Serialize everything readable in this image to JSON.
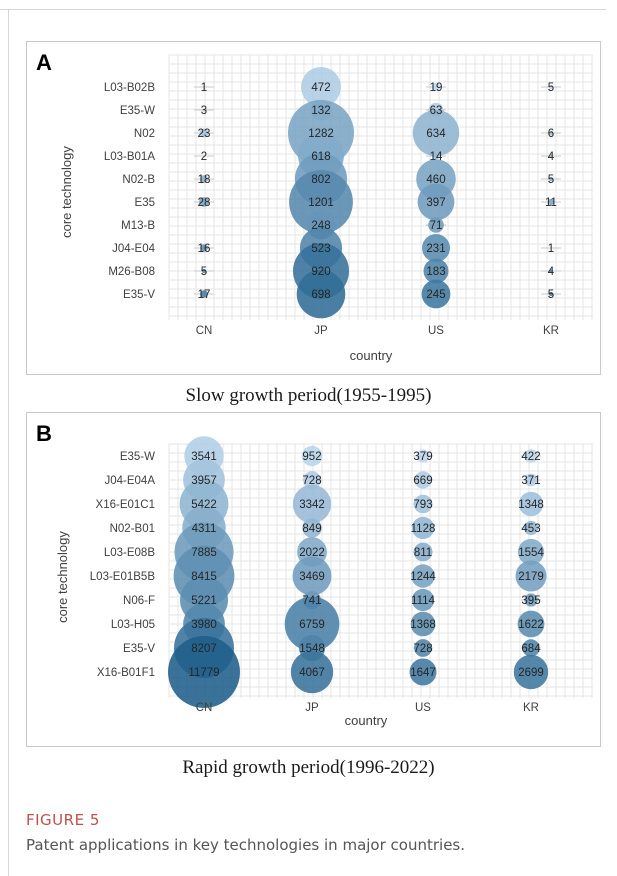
{
  "chart_data": [
    {
      "type": "scatter",
      "subtype": "bubble",
      "panel_label": "A",
      "xlabel": "country",
      "ylabel": "core technology",
      "categories_x": [
        "CN",
        "JP",
        "US",
        "KR"
      ],
      "categories_y": [
        "L03-B02B",
        "E35-W",
        "N02",
        "L03-B01A",
        "N02-B",
        "E35",
        "M13-B",
        "J04-E04",
        "M26-B08",
        "E35-V"
      ],
      "values": [
        [
          "1",
          "472",
          "19",
          "5"
        ],
        [
          "3",
          "132",
          "63",
          ""
        ],
        [
          "23",
          "1282",
          "634",
          "6"
        ],
        [
          "2",
          "618",
          "14",
          "4"
        ],
        [
          "18",
          "802",
          "460",
          "5"
        ],
        [
          "28",
          "1201",
          "397",
          "11"
        ],
        [
          "",
          "248",
          "71",
          ""
        ],
        [
          "16",
          "523",
          "231",
          "1"
        ],
        [
          "5",
          "920",
          "183",
          "4"
        ],
        [
          "17",
          "698",
          "245",
          "5"
        ]
      ],
      "grid": true,
      "colors": {
        "light": "#bdd7ee",
        "dark": "#1f5f8b"
      }
    },
    {
      "type": "scatter",
      "subtype": "bubble",
      "panel_label": "B",
      "xlabel": "country",
      "ylabel": "core technology",
      "categories_x": [
        "CN",
        "JP",
        "US",
        "KR"
      ],
      "categories_y": [
        "E35-W",
        "J04-E04A",
        "X16-E01C1",
        "N02-B01",
        "L03-E08B",
        "L03-E01B5B",
        "N06-F",
        "L03-H05",
        "E35-V",
        "X16-B01F1"
      ],
      "values": [
        [
          "3541",
          "952",
          "379",
          "422"
        ],
        [
          "3957",
          "728",
          "669",
          "371"
        ],
        [
          "5422",
          "3342",
          "793",
          "1348"
        ],
        [
          "4311",
          "849",
          "1128",
          "453"
        ],
        [
          "7885",
          "2022",
          "811",
          "1554"
        ],
        [
          "8415",
          "3469",
          "1244",
          "2179"
        ],
        [
          "5221",
          "741",
          "1114",
          "395"
        ],
        [
          "3980",
          "6759",
          "1368",
          "1622"
        ],
        [
          "8207",
          "1548",
          "728",
          "684"
        ],
        [
          "11779",
          "4067",
          "1647",
          "2699"
        ]
      ],
      "grid": true,
      "colors": {
        "light": "#bdd7ee",
        "dark": "#1f5f8b"
      }
    }
  ],
  "captions": {
    "a": "Slow growth period(1955-1995)",
    "b": "Rapid growth period(1996-2022)"
  },
  "figure": {
    "label": "FIGURE 5",
    "text": "Patent applications in key technologies in major countries."
  }
}
